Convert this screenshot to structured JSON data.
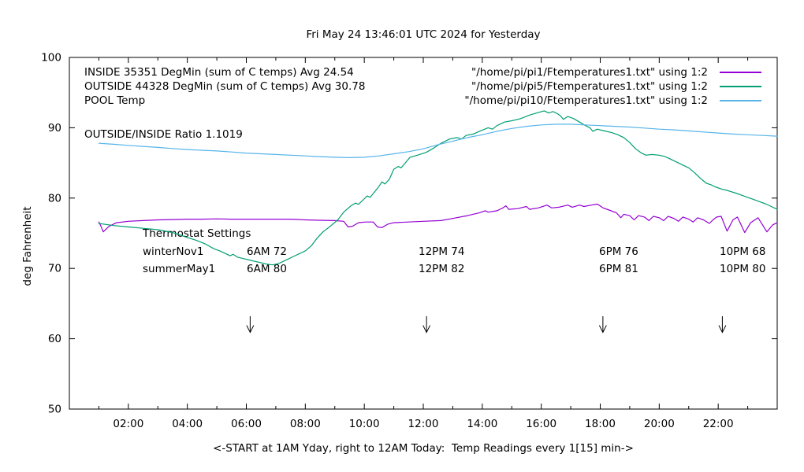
{
  "title": "Fri May 24 13:46:01 UTC 2024 for Yesterday",
  "ylabel": "deg Fahrenheit",
  "xlabel": "<-START at 1AM Yday, right to 12AM Today:  Temp Readings every 1[15] min->",
  "ratio_label": "OUTSIDE/INSIDE Ratio 1.1019",
  "legend": {
    "rows": [
      {
        "label": "INSIDE 35351 DegMin (sum of C temps) Avg 24.54",
        "file": "\"/home/pi/pi1/Ftemperatures1.txt\" using 1:2",
        "color": "#9400d3"
      },
      {
        "label": "OUTSIDE 44328 DegMin (sum of C temps) Avg 30.78",
        "file": "\"/home/pi/pi5/Ftemperatures1.txt\" using 1:2",
        "color": "#009e73"
      },
      {
        "label": "POOL Temp",
        "file": "\"/home/pi/pi10/Ftemperatures1.txt\" using 1:2",
        "color": "#56b4e9"
      }
    ]
  },
  "thermostat": {
    "title": "Thermostat Settings",
    "rows": [
      {
        "name": "winterNov1",
        "settings": [
          "6AM 72",
          "12PM 74",
          "6PM 76",
          "10PM 68"
        ]
      },
      {
        "name": "summerMay1",
        "settings": [
          "6AM 80",
          "12PM 82",
          "6PM 81",
          "10PM 80"
        ]
      }
    ]
  },
  "chart_data": {
    "type": "line",
    "title": "Fri May 24 13:46:01 UTC 2024 for Yesterday",
    "xlabel": "<-START at 1AM Yday, right to 12AM Today:  Temp Readings every 1[15] min->",
    "ylabel": "deg Fahrenheit",
    "xlim": [
      0,
      24
    ],
    "ylim": [
      50,
      100
    ],
    "grid": false,
    "legend_position": "top-inside",
    "axis_color": "#000000",
    "x_major_ticks": [
      {
        "hour": 2,
        "label": "02:00"
      },
      {
        "hour": 4,
        "label": "04:00"
      },
      {
        "hour": 6,
        "label": "06:00"
      },
      {
        "hour": 8,
        "label": "08:00"
      },
      {
        "hour": 10,
        "label": "10:00"
      },
      {
        "hour": 12,
        "label": "12:00"
      },
      {
        "hour": 14,
        "label": "14:00"
      },
      {
        "hour": 16,
        "label": "16:00"
      },
      {
        "hour": 18,
        "label": "18:00"
      },
      {
        "hour": 20,
        "label": "20:00"
      },
      {
        "hour": 22,
        "label": "22:00"
      }
    ],
    "x_minor_hours": [
      1,
      3,
      5,
      7,
      9,
      11,
      13,
      15,
      17,
      19,
      21,
      23
    ],
    "y_ticks": [
      50,
      60,
      70,
      80,
      90,
      100
    ],
    "arrows": {
      "x_hours": [
        6.13,
        12.11,
        18.09,
        22.14
      ],
      "f_top": 63.2,
      "f_tip": 60.9,
      "color": "#000000"
    },
    "series": [
      {
        "name": "INSIDE",
        "color": "#9400d3",
        "points": [
          [
            1.0,
            76.6
          ],
          [
            1.05,
            76.2
          ],
          [
            1.15,
            75.2
          ],
          [
            1.35,
            76.0
          ],
          [
            1.6,
            76.5
          ],
          [
            2,
            76.7
          ],
          [
            2.5,
            76.8
          ],
          [
            3,
            76.9
          ],
          [
            3.5,
            76.95
          ],
          [
            4,
            77.0
          ],
          [
            4.5,
            77.0
          ],
          [
            5,
            77.05
          ],
          [
            5.5,
            77.0
          ],
          [
            6,
            77.0
          ],
          [
            6.5,
            77.0
          ],
          [
            7,
            77.0
          ],
          [
            7.5,
            77.0
          ],
          [
            8,
            76.9
          ],
          [
            8.5,
            76.85
          ],
          [
            9,
            76.8
          ],
          [
            9.3,
            76.7
          ],
          [
            9.45,
            75.9
          ],
          [
            9.6,
            76.0
          ],
          [
            9.8,
            76.5
          ],
          [
            10.05,
            76.6
          ],
          [
            10.3,
            76.6
          ],
          [
            10.45,
            75.9
          ],
          [
            10.6,
            75.8
          ],
          [
            10.8,
            76.3
          ],
          [
            11,
            76.5
          ],
          [
            11.5,
            76.6
          ],
          [
            12,
            76.7
          ],
          [
            12.6,
            76.8
          ],
          [
            13,
            77.1
          ],
          [
            13.5,
            77.5
          ],
          [
            13.9,
            77.9
          ],
          [
            14.1,
            78.2
          ],
          [
            14.2,
            78.0
          ],
          [
            14.5,
            78.2
          ],
          [
            14.7,
            78.6
          ],
          [
            14.8,
            78.9
          ],
          [
            14.9,
            78.4
          ],
          [
            15.2,
            78.5
          ],
          [
            15.5,
            78.8
          ],
          [
            15.6,
            78.4
          ],
          [
            15.9,
            78.6
          ],
          [
            16.2,
            79.0
          ],
          [
            16.35,
            78.6
          ],
          [
            16.6,
            78.7
          ],
          [
            16.9,
            79.0
          ],
          [
            17.05,
            78.7
          ],
          [
            17.3,
            79.0
          ],
          [
            17.45,
            78.8
          ],
          [
            17.7,
            79.0
          ],
          [
            17.9,
            79.15
          ],
          [
            18.1,
            78.6
          ],
          [
            18.3,
            78.3
          ],
          [
            18.55,
            77.9
          ],
          [
            18.7,
            77.2
          ],
          [
            18.8,
            77.7
          ],
          [
            19.0,
            77.5
          ],
          [
            19.15,
            76.9
          ],
          [
            19.3,
            77.5
          ],
          [
            19.5,
            77.3
          ],
          [
            19.65,
            76.8
          ],
          [
            19.8,
            77.4
          ],
          [
            20.0,
            77.2
          ],
          [
            20.15,
            76.8
          ],
          [
            20.3,
            77.4
          ],
          [
            20.5,
            77.1
          ],
          [
            20.65,
            76.7
          ],
          [
            20.8,
            77.3
          ],
          [
            21.0,
            77.0
          ],
          [
            21.15,
            76.6
          ],
          [
            21.3,
            77.2
          ],
          [
            21.5,
            76.9
          ],
          [
            21.7,
            76.4
          ],
          [
            21.85,
            77.0
          ],
          [
            21.95,
            77.3
          ],
          [
            22.1,
            77.4
          ],
          [
            22.3,
            75.3
          ],
          [
            22.5,
            76.9
          ],
          [
            22.65,
            77.3
          ],
          [
            22.9,
            75.1
          ],
          [
            23.1,
            76.5
          ],
          [
            23.35,
            77.2
          ],
          [
            23.65,
            75.2
          ],
          [
            23.85,
            76.2
          ],
          [
            24,
            76.5
          ]
        ]
      },
      {
        "name": "OUTSIDE",
        "color": "#009e73",
        "points": [
          [
            1.0,
            76.4
          ],
          [
            1.5,
            76.1
          ],
          [
            2,
            75.9
          ],
          [
            2.5,
            75.7
          ],
          [
            3,
            75.5
          ],
          [
            3.5,
            75.1
          ],
          [
            4,
            74.4
          ],
          [
            4.3,
            74.0
          ],
          [
            4.6,
            73.5
          ],
          [
            4.9,
            72.8
          ],
          [
            5.1,
            72.5
          ],
          [
            5.3,
            72.1
          ],
          [
            5.45,
            71.8
          ],
          [
            5.55,
            72.0
          ],
          [
            5.7,
            71.6
          ],
          [
            5.9,
            71.4
          ],
          [
            6.1,
            71.2
          ],
          [
            6.3,
            71.0
          ],
          [
            6.5,
            70.8
          ],
          [
            6.7,
            70.6
          ],
          [
            6.9,
            70.5
          ],
          [
            7.1,
            70.7
          ],
          [
            7.3,
            71.1
          ],
          [
            7.6,
            71.7
          ],
          [
            7.8,
            72.1
          ],
          [
            8.0,
            72.5
          ],
          [
            8.2,
            73.2
          ],
          [
            8.4,
            74.3
          ],
          [
            8.6,
            75.2
          ],
          [
            8.85,
            76.0
          ],
          [
            9.1,
            76.9
          ],
          [
            9.3,
            78.0
          ],
          [
            9.55,
            78.9
          ],
          [
            9.7,
            79.3
          ],
          [
            9.8,
            79.1
          ],
          [
            9.95,
            79.7
          ],
          [
            10.1,
            80.3
          ],
          [
            10.2,
            80.1
          ],
          [
            10.45,
            81.4
          ],
          [
            10.6,
            82.3
          ],
          [
            10.7,
            82.0
          ],
          [
            10.85,
            82.7
          ],
          [
            11.0,
            84.1
          ],
          [
            11.15,
            84.5
          ],
          [
            11.25,
            84.3
          ],
          [
            11.55,
            85.8
          ],
          [
            11.8,
            86.1
          ],
          [
            12.1,
            86.5
          ],
          [
            12.35,
            87.1
          ],
          [
            12.6,
            87.8
          ],
          [
            12.9,
            88.4
          ],
          [
            13.15,
            88.6
          ],
          [
            13.3,
            88.4
          ],
          [
            13.45,
            88.9
          ],
          [
            13.7,
            89.1
          ],
          [
            13.9,
            89.5
          ],
          [
            14.2,
            90.0
          ],
          [
            14.35,
            89.8
          ],
          [
            14.5,
            90.3
          ],
          [
            14.75,
            90.8
          ],
          [
            15.0,
            91.0
          ],
          [
            15.3,
            91.3
          ],
          [
            15.6,
            91.8
          ],
          [
            15.85,
            92.1
          ],
          [
            16.1,
            92.4
          ],
          [
            16.25,
            92.1
          ],
          [
            16.4,
            92.3
          ],
          [
            16.55,
            92.0
          ],
          [
            16.65,
            91.7
          ],
          [
            16.75,
            91.2
          ],
          [
            16.9,
            91.6
          ],
          [
            17.1,
            91.3
          ],
          [
            17.3,
            90.8
          ],
          [
            17.5,
            90.3
          ],
          [
            17.65,
            90.0
          ],
          [
            17.75,
            89.5
          ],
          [
            17.9,
            89.8
          ],
          [
            18.1,
            89.6
          ],
          [
            18.4,
            89.3
          ],
          [
            18.6,
            89.0
          ],
          [
            18.8,
            88.6
          ],
          [
            19.0,
            87.9
          ],
          [
            19.2,
            87.0
          ],
          [
            19.4,
            86.4
          ],
          [
            19.55,
            86.1
          ],
          [
            19.75,
            86.2
          ],
          [
            20.0,
            86.1
          ],
          [
            20.2,
            85.9
          ],
          [
            20.4,
            85.5
          ],
          [
            20.6,
            85.1
          ],
          [
            20.8,
            84.7
          ],
          [
            21.0,
            84.3
          ],
          [
            21.2,
            83.6
          ],
          [
            21.4,
            82.8
          ],
          [
            21.6,
            82.1
          ],
          [
            21.75,
            81.9
          ],
          [
            21.9,
            81.6
          ],
          [
            22.1,
            81.3
          ],
          [
            22.3,
            81.1
          ],
          [
            22.45,
            80.9
          ],
          [
            22.6,
            80.7
          ],
          [
            22.8,
            80.4
          ],
          [
            23.0,
            80.1
          ],
          [
            23.2,
            79.8
          ],
          [
            23.4,
            79.5
          ],
          [
            23.6,
            79.2
          ],
          [
            23.8,
            78.8
          ],
          [
            24,
            78.4
          ]
        ]
      },
      {
        "name": "POOL",
        "color": "#56b4e9",
        "points": [
          [
            1,
            87.8
          ],
          [
            1.5,
            87.65
          ],
          [
            2,
            87.5
          ],
          [
            2.5,
            87.35
          ],
          [
            3,
            87.2
          ],
          [
            3.5,
            87.05
          ],
          [
            4,
            86.9
          ],
          [
            4.5,
            86.8
          ],
          [
            5,
            86.7
          ],
          [
            5.5,
            86.55
          ],
          [
            6,
            86.4
          ],
          [
            6.5,
            86.3
          ],
          [
            7,
            86.2
          ],
          [
            7.5,
            86.1
          ],
          [
            8,
            86.0
          ],
          [
            8.5,
            85.9
          ],
          [
            9,
            85.8
          ],
          [
            9.5,
            85.75
          ],
          [
            10,
            85.8
          ],
          [
            10.5,
            86.0
          ],
          [
            11,
            86.3
          ],
          [
            11.5,
            86.6
          ],
          [
            12,
            87.0
          ],
          [
            12.5,
            87.6
          ],
          [
            13,
            88.1
          ],
          [
            13.5,
            88.6
          ],
          [
            14,
            89.0
          ],
          [
            14.5,
            89.5
          ],
          [
            15,
            89.9
          ],
          [
            15.5,
            90.2
          ],
          [
            16,
            90.4
          ],
          [
            16.5,
            90.5
          ],
          [
            17,
            90.5
          ],
          [
            17.5,
            90.4
          ],
          [
            18,
            90.3
          ],
          [
            18.5,
            90.2
          ],
          [
            19,
            90.1
          ],
          [
            19.5,
            89.95
          ],
          [
            20,
            89.8
          ],
          [
            20.5,
            89.7
          ],
          [
            21,
            89.55
          ],
          [
            21.5,
            89.4
          ],
          [
            22,
            89.25
          ],
          [
            22.5,
            89.1
          ],
          [
            23,
            89.0
          ],
          [
            23.5,
            88.9
          ],
          [
            24,
            88.8
          ]
        ]
      }
    ]
  }
}
